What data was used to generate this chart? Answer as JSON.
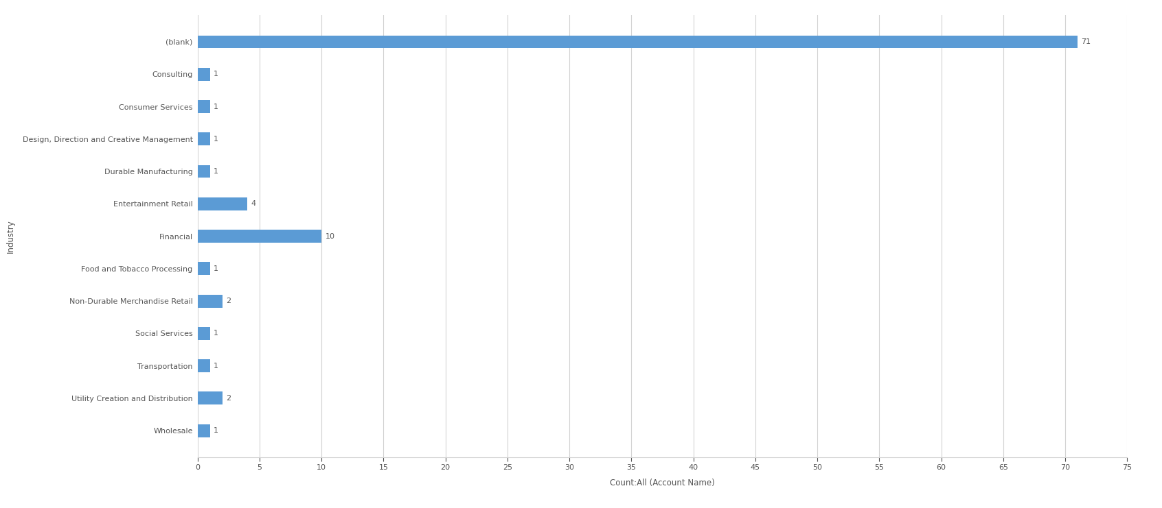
{
  "categories": [
    "Wholesale",
    "Utility Creation and Distribution",
    "Transportation",
    "Social Services",
    "Non-Durable Merchandise Retail",
    "Food and Tobacco Processing",
    "Financial",
    "Entertainment Retail",
    "Durable Manufacturing",
    "Design, Direction and Creative Management",
    "Consumer Services",
    "Consulting",
    "(blank)"
  ],
  "values": [
    1,
    2,
    1,
    1,
    2,
    1,
    10,
    4,
    1,
    1,
    1,
    1,
    71
  ],
  "bar_color": "#5B9BD5",
  "xlabel": "Count:All (Account Name)",
  "ylabel": "Industry",
  "xlim": [
    0,
    75
  ],
  "xticks": [
    0,
    5,
    10,
    15,
    20,
    25,
    30,
    35,
    40,
    45,
    50,
    55,
    60,
    65,
    70,
    75
  ],
  "background_color": "#FFFFFF",
  "grid_color": "#D3D3D3",
  "label_fontsize": 8,
  "axis_label_fontsize": 8.5,
  "tick_fontsize": 8,
  "bar_label_fontsize": 8,
  "bar_height": 0.4
}
